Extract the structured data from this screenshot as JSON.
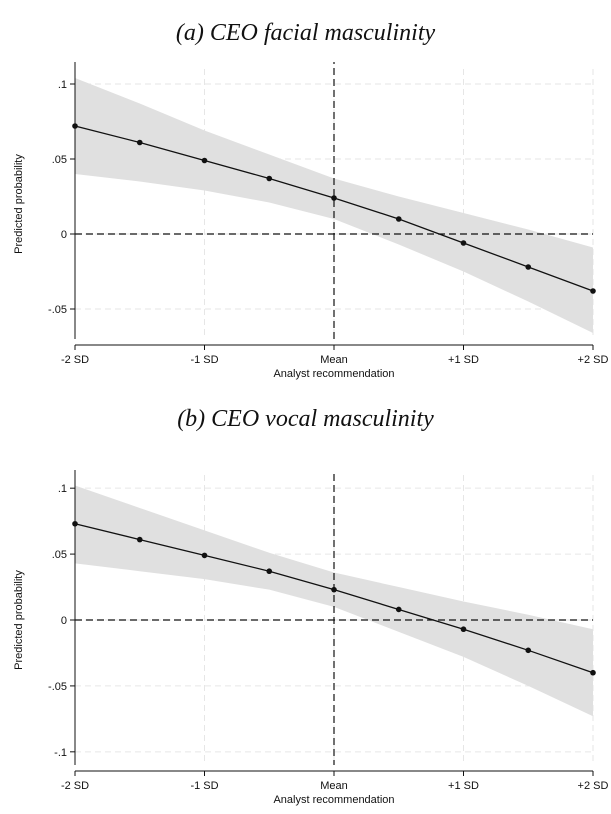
{
  "chart_data": [
    {
      "type": "line",
      "title": "(a) CEO facial masculinity",
      "xlabel": "Analyst recommendation",
      "ylabel": "Predicted probability",
      "categories": [
        "-2 SD",
        "-1 SD",
        "Mean",
        "+1 SD",
        "+2 SD"
      ],
      "x": [
        -2,
        -1.5,
        -1,
        -0.5,
        0,
        0.5,
        1,
        1.5,
        2
      ],
      "y": [
        0.072,
        0.061,
        0.049,
        0.037,
        0.024,
        0.01,
        -0.006,
        -0.022,
        -0.038
      ],
      "ci_lower": [
        0.04,
        0.035,
        0.029,
        0.021,
        0.01,
        -0.007,
        -0.025,
        -0.045,
        -0.066
      ],
      "ci_upper": [
        0.104,
        0.087,
        0.069,
        0.053,
        0.037,
        0.025,
        0.014,
        0.003,
        -0.009
      ],
      "xlim": [
        -2,
        2
      ],
      "ylim": [
        -0.07,
        0.11
      ],
      "yticks": [
        0.1,
        0.05,
        0,
        -0.05
      ],
      "ytick_labels": [
        ".1",
        ".05",
        "0",
        "-.05"
      ],
      "reference_lines": {
        "x": 0,
        "y": 0
      },
      "grid": true,
      "colors": {
        "line": "#111111",
        "ci_band": "#e0e0e0",
        "grid": "#e6e6e6"
      }
    },
    {
      "type": "line",
      "title": "(b) CEO vocal masculinity",
      "xlabel": "Analyst recommendation",
      "ylabel": "Predicted probability",
      "categories": [
        "-2 SD",
        "-1 SD",
        "Mean",
        "+1 SD",
        "+2 SD"
      ],
      "x": [
        -2,
        -1.5,
        -1,
        -0.5,
        0,
        0.5,
        1,
        1.5,
        2
      ],
      "y": [
        0.073,
        0.061,
        0.049,
        0.037,
        0.023,
        0.008,
        -0.007,
        -0.023,
        -0.04
      ],
      "ci_lower": [
        0.043,
        0.037,
        0.031,
        0.023,
        0.01,
        -0.009,
        -0.028,
        -0.05,
        -0.073
      ],
      "ci_upper": [
        0.102,
        0.085,
        0.068,
        0.051,
        0.036,
        0.025,
        0.014,
        0.004,
        -0.007
      ],
      "xlim": [
        -2,
        2
      ],
      "ylim": [
        -0.11,
        0.11
      ],
      "yticks": [
        0.1,
        0.05,
        0,
        -0.05,
        -0.1
      ],
      "ytick_labels": [
        ".1",
        ".05",
        "0",
        "-.05",
        "-.1"
      ],
      "reference_lines": {
        "x": 0,
        "y": 0
      },
      "grid": true,
      "colors": {
        "line": "#111111",
        "ci_band": "#e0e0e0",
        "grid": "#e6e6e6"
      }
    }
  ]
}
